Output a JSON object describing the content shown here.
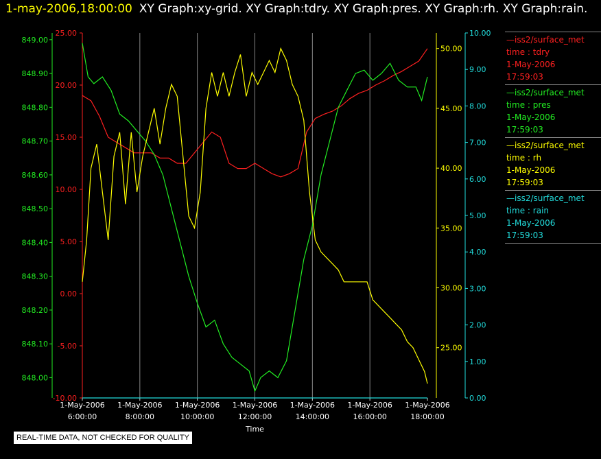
{
  "header": {
    "time": "1-may-2006,18:00:00",
    "graphs": "XY Graph:xy-grid.  XY Graph:tdry.  XY Graph:pres.  XY Graph:rh.  XY Graph:rain."
  },
  "colors": {
    "tdry": "#ff2020",
    "pres": "#22ee22",
    "rh": "#ffff00",
    "rain": "#22dddd",
    "grid": "#888888",
    "header_time": "#ffff00",
    "header": "#ffffff"
  },
  "legend": [
    {
      "key": "tdry",
      "source": "—iss2/surface_met",
      "var": "time : tdry",
      "date": "1-May-2006",
      "time": "17:59:03"
    },
    {
      "key": "pres",
      "source": "—iss2/surface_met",
      "var": "time : pres",
      "date": "1-May-2006",
      "time": "17:59:03"
    },
    {
      "key": "rh",
      "source": "—iss2/surface_met",
      "var": "time : rh",
      "date": "1-May-2006",
      "time": "17:59:03"
    },
    {
      "key": "rain",
      "source": "—iss2/surface_met",
      "var": "time : rain",
      "date": "1-May-2006",
      "time": "17:59:03"
    }
  ],
  "disclaimer": "REAL-TIME DATA, NOT CHECKED FOR QUALITY",
  "chart_data": {
    "type": "line",
    "xlabel": "Time",
    "x_ticks": [
      {
        "date": "1-May-2006",
        "time": "6:00:00"
      },
      {
        "date": "1-May-2006",
        "time": "8:00:00"
      },
      {
        "date": "1-May-2006",
        "time": "10:00:00"
      },
      {
        "date": "1-May-2006",
        "time": "12:00:00"
      },
      {
        "date": "1-May-2006",
        "time": "14:00:00"
      },
      {
        "date": "1-May-2006",
        "time": "16:00:00"
      },
      {
        "date": "1-May-2006",
        "time": "18:00:00"
      }
    ],
    "xlim": [
      6,
      18
    ],
    "grid": true,
    "axes": {
      "tdry": {
        "ylim": [
          -10,
          25
        ],
        "ticks": [
          "-10.00",
          "-5.00",
          "0.00",
          "5.00",
          "10.00",
          "15.00",
          "20.00",
          "25.00"
        ],
        "values": [
          -10,
          -5,
          0,
          5,
          10,
          15,
          20,
          25
        ]
      },
      "pres": {
        "ylim": [
          847.94,
          849.02
        ],
        "ticks": [
          "848.00",
          "848.10",
          "848.20",
          "848.30",
          "848.40",
          "848.50",
          "848.60",
          "848.70",
          "848.80",
          "848.90",
          "849.00"
        ],
        "values": [
          848.0,
          848.1,
          848.2,
          848.3,
          848.4,
          848.5,
          848.6,
          848.7,
          848.8,
          848.9,
          849.0
        ]
      },
      "rh": {
        "ylim": [
          20.8,
          51.3
        ],
        "ticks": [
          "25.00",
          "30.00",
          "35.00",
          "40.00",
          "45.00",
          "50.00"
        ],
        "values": [
          25,
          30,
          35,
          40,
          45,
          50
        ]
      },
      "rain": {
        "ylim": [
          0,
          10
        ],
        "ticks": [
          "0.00",
          "1.00",
          "2.00",
          "3.00",
          "4.00",
          "5.00",
          "6.00",
          "7.00",
          "8.00",
          "9.00",
          "10.00"
        ],
        "values": [
          0,
          1,
          2,
          3,
          4,
          5,
          6,
          7,
          8,
          9,
          10
        ]
      }
    },
    "series": [
      {
        "key": "tdry",
        "x": [
          6.0,
          6.3,
          6.6,
          6.9,
          7.2,
          7.5,
          7.8,
          8.1,
          8.4,
          8.7,
          9.0,
          9.3,
          9.6,
          9.9,
          10.2,
          10.5,
          10.8,
          11.1,
          11.4,
          11.7,
          12.0,
          12.3,
          12.6,
          12.9,
          13.2,
          13.5,
          13.8,
          14.1,
          14.4,
          14.7,
          15.0,
          15.3,
          15.6,
          15.9,
          16.2,
          16.5,
          16.8,
          17.1,
          17.4,
          17.7,
          18.0
        ],
        "y": [
          19,
          18.5,
          17,
          15,
          14.5,
          14,
          13.5,
          13.5,
          13.5,
          13,
          13,
          12.5,
          12.5,
          13.5,
          14.5,
          15.5,
          15,
          12.5,
          12,
          12,
          12.5,
          12,
          11.5,
          11.2,
          11.5,
          12,
          15.5,
          16.8,
          17.2,
          17.5,
          18,
          18.7,
          19.2,
          19.5,
          20,
          20.4,
          20.9,
          21.3,
          21.8,
          22.3,
          23.5
        ]
      },
      {
        "key": "pres",
        "x": [
          6.0,
          6.2,
          6.4,
          6.7,
          7.0,
          7.3,
          7.6,
          7.9,
          8.2,
          8.5,
          8.8,
          9.1,
          9.4,
          9.7,
          10.0,
          10.3,
          10.6,
          10.9,
          11.2,
          11.5,
          11.8,
          12.0,
          12.2,
          12.5,
          12.8,
          13.1,
          13.4,
          13.7,
          14.0,
          14.3,
          14.6,
          14.9,
          15.2,
          15.5,
          15.8,
          16.1,
          16.4,
          16.7,
          17.0,
          17.3,
          17.6,
          17.8,
          18.0
        ],
        "y": [
          848.99,
          848.89,
          848.87,
          848.89,
          848.85,
          848.78,
          848.76,
          848.73,
          848.7,
          848.66,
          848.6,
          848.5,
          848.4,
          848.3,
          848.22,
          848.15,
          848.17,
          848.1,
          848.06,
          848.04,
          848.02,
          847.96,
          848.0,
          848.02,
          848.0,
          848.05,
          848.2,
          848.35,
          848.45,
          848.6,
          848.7,
          848.8,
          848.85,
          848.9,
          848.91,
          848.88,
          848.9,
          848.93,
          848.88,
          848.86,
          848.86,
          848.82,
          848.89
        ]
      },
      {
        "key": "rh",
        "x": [
          6.0,
          6.15,
          6.3,
          6.5,
          6.7,
          6.9,
          7.1,
          7.3,
          7.5,
          7.7,
          7.9,
          8.1,
          8.3,
          8.5,
          8.7,
          8.9,
          9.1,
          9.3,
          9.5,
          9.7,
          9.9,
          10.1,
          10.3,
          10.5,
          10.7,
          10.9,
          11.1,
          11.3,
          11.5,
          11.7,
          11.9,
          12.1,
          12.3,
          12.5,
          12.7,
          12.9,
          13.1,
          13.3,
          13.5,
          13.7,
          13.9,
          14.1,
          14.3,
          14.5,
          14.7,
          14.9,
          15.1,
          15.3,
          15.5,
          15.7,
          15.9,
          16.1,
          16.3,
          16.5,
          16.7,
          16.9,
          17.1,
          17.3,
          17.5,
          17.7,
          17.9,
          18.0
        ],
        "y": [
          30.5,
          34,
          40,
          42,
          38,
          34,
          41,
          43,
          37,
          43,
          38,
          41,
          43,
          45,
          42,
          45,
          47,
          46,
          41,
          36,
          35,
          38,
          45,
          48,
          46,
          48,
          46,
          48,
          49.5,
          46,
          48,
          47,
          48,
          49,
          48,
          50,
          49,
          47,
          46,
          44,
          38,
          34,
          33,
          32.5,
          32,
          31.5,
          30.5,
          30.5,
          30.5,
          30.5,
          30.5,
          29,
          28.5,
          28,
          27.5,
          27,
          26.5,
          25.5,
          25,
          24,
          23,
          22
        ]
      },
      {
        "key": "rain",
        "x": [
          6.0,
          18.0
        ],
        "y": [
          0,
          0
        ]
      }
    ]
  }
}
